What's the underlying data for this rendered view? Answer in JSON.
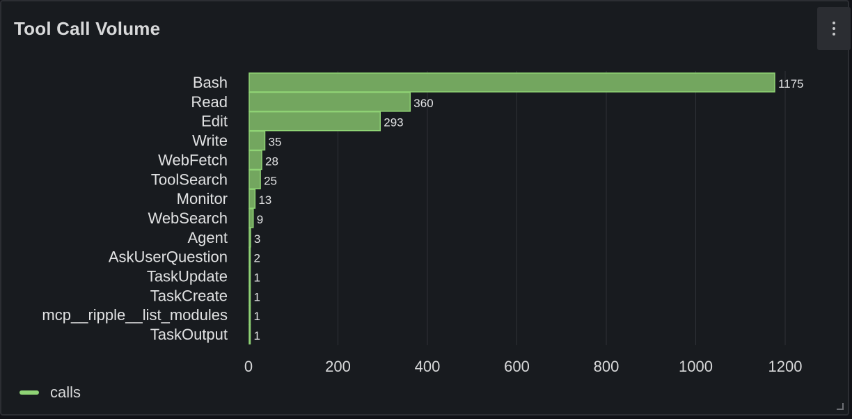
{
  "panel": {
    "title": "Tool Call Volume"
  },
  "icons": {
    "menu": "kebab-vertical-icon"
  },
  "colors": {
    "bar_fill": "#73a65f",
    "bar_stroke": "#8fd375",
    "grid": "#2f3237",
    "text": "#d8d9da",
    "label_text": "#e1e2e3"
  },
  "chart_data": {
    "type": "bar",
    "orientation": "horizontal",
    "categories": [
      "Bash",
      "Read",
      "Edit",
      "Write",
      "WebFetch",
      "ToolSearch",
      "Monitor",
      "WebSearch",
      "Agent",
      "AskUserQuestion",
      "TaskUpdate",
      "TaskCreate",
      "mcp__ripple__list_modules",
      "TaskOutput"
    ],
    "series": [
      {
        "name": "calls",
        "values": [
          1175,
          360,
          293,
          35,
          28,
          25,
          13,
          9,
          3,
          2,
          1,
          1,
          1,
          1
        ]
      }
    ],
    "value_labels": [
      "1175",
      "360",
      "293",
      "35",
      "28",
      "25",
      "13",
      "9",
      "3",
      "2",
      "1",
      "1",
      "1",
      "1"
    ],
    "xlim": [
      0,
      1300
    ],
    "xticks": [
      0,
      200,
      400,
      600,
      800,
      1000,
      1200
    ],
    "xtick_labels": [
      "0",
      "200",
      "400",
      "600",
      "800",
      "1000",
      "1200"
    ],
    "grid": true,
    "legend_position": "bottom-left"
  }
}
